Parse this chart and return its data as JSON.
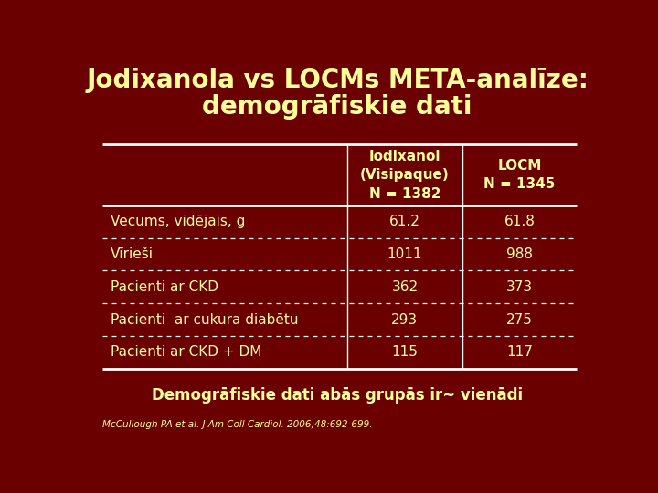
{
  "title_line1": "Jodixanola vs LOCMs META-analīze:",
  "title_line2": "demogrāfiskie dati",
  "bg_color": "#6B0000",
  "title_color": "#FFFF99",
  "text_color": "#FFFF99",
  "col_headers": [
    "Iodixanol\n(Visipaque)\nN = 1382",
    "LOCM\nN = 1345"
  ],
  "row_labels": [
    "Vecums, vidējais, g",
    "Vīrieši",
    "Pacienti ar CKD",
    "Pacienti  ar cukura diabētu",
    "Pacienti ar CKD + DM"
  ],
  "col1_values": [
    "61.2",
    "1011",
    "362",
    "293",
    "115"
  ],
  "col2_values": [
    "61.8",
    "988",
    "373",
    "275",
    "117"
  ],
  "footer": "Demogrāfiskie dati abās grupās ir~ vienādi",
  "citation": "McCullough PA et al. J Am Coll Cardiol. 2006;48:692-699.",
  "line_color": "#FFFFFF"
}
